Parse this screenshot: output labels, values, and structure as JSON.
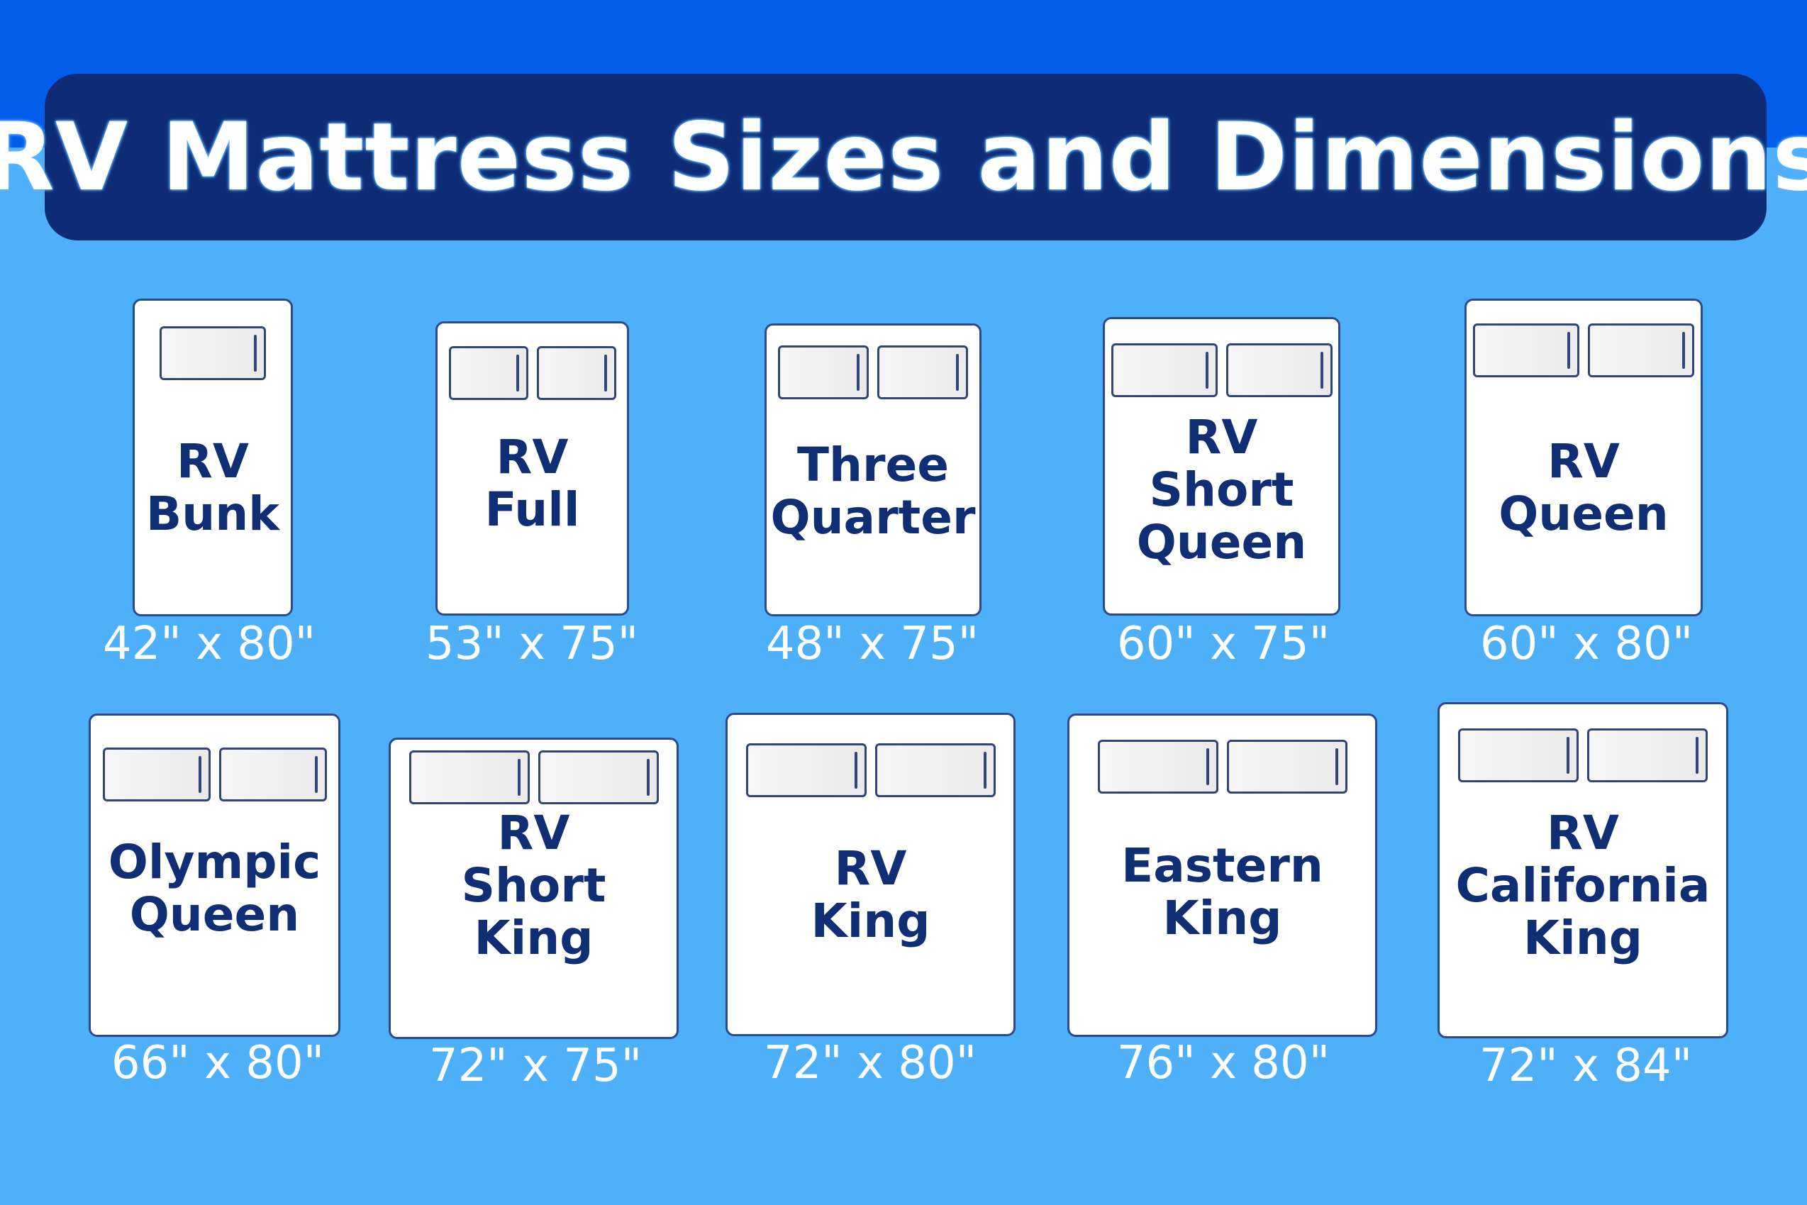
{
  "title": "RV Mattress Sizes and Dimensions",
  "colors": {
    "top_band": "#025dea",
    "background": "#4fb0fa",
    "banner": "#0e2c76",
    "label": "#102e74"
  },
  "icon": "pillow-icon",
  "mattresses": [
    {
      "name_lines": [
        "RV",
        "Bunk"
      ],
      "dimensions": "42\" x 80\"",
      "pillows": 1
    },
    {
      "name_lines": [
        "RV",
        "Full"
      ],
      "dimensions": "53\" x 75\"",
      "pillows": 2
    },
    {
      "name_lines": [
        "Three",
        "Quarter"
      ],
      "dimensions": "48\" x 75\"",
      "pillows": 2
    },
    {
      "name_lines": [
        "RV",
        "Short",
        "Queen"
      ],
      "dimensions": "60\" x 75\"",
      "pillows": 2
    },
    {
      "name_lines": [
        "RV",
        "Queen"
      ],
      "dimensions": "60\" x 80\"",
      "pillows": 2
    },
    {
      "name_lines": [
        "Olympic",
        "Queen"
      ],
      "dimensions": "66\" x 80\"",
      "pillows": 2
    },
    {
      "name_lines": [
        "RV",
        "Short",
        "King"
      ],
      "dimensions": "72\" x 75\"",
      "pillows": 2
    },
    {
      "name_lines": [
        "RV",
        "King"
      ],
      "dimensions": "72\" x 80\"",
      "pillows": 2
    },
    {
      "name_lines": [
        "Eastern",
        "King"
      ],
      "dimensions": "76\" x 80\"",
      "pillows": 2
    },
    {
      "name_lines": [
        "RV",
        "California",
        "King"
      ],
      "dimensions": "72\" x 84\"",
      "pillows": 2
    }
  ]
}
